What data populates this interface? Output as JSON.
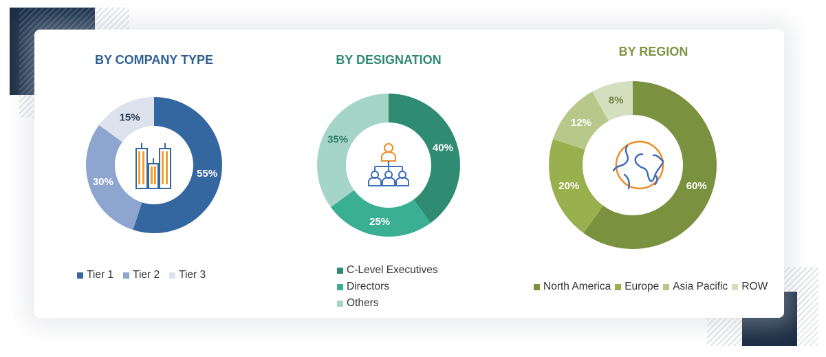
{
  "panels": [
    {
      "title": "BY COMPANY TYPE",
      "title_color": "#2e5f94",
      "icon": "buildings-icon"
    },
    {
      "title": "BY DESIGNATION",
      "title_color": "#2f8a70",
      "icon": "org-hierarchy-icon"
    },
    {
      "title": "BY REGION",
      "title_color": "#7f9443",
      "icon": "globe-icon"
    }
  ],
  "chart_data": [
    {
      "type": "pie",
      "title": "BY COMPANY TYPE",
      "categories": [
        "Tier 1",
        "Tier 2",
        "Tier 3"
      ],
      "values": [
        55,
        30,
        15
      ],
      "labels": [
        "55%",
        "30%",
        "15%"
      ],
      "colors": [
        "#3466a0",
        "#8ea6cf",
        "#dde3ee"
      ],
      "label_colors": [
        "#ffffff",
        "#ffffff",
        "#2b3a4f"
      ],
      "legend_position": "bottom"
    },
    {
      "type": "pie",
      "title": "BY DESIGNATION",
      "categories": [
        "C-Level Executives",
        "Directors",
        "Others"
      ],
      "values": [
        40,
        25,
        35
      ],
      "labels": [
        "40%",
        "25%",
        "35%"
      ],
      "colors": [
        "#2f8b72",
        "#3baf93",
        "#a5d5c6"
      ],
      "label_colors": [
        "#ffffff",
        "#ffffff",
        "#2f7a62"
      ],
      "legend_position": "bottom"
    },
    {
      "type": "pie",
      "title": "BY REGION",
      "categories": [
        "North America",
        "Europe",
        "Asia Pacific",
        "ROW"
      ],
      "values": [
        60,
        20,
        12,
        8
      ],
      "labels": [
        "60%",
        "20%",
        "12%",
        "8%"
      ],
      "colors": [
        "#7a9140",
        "#99b04e",
        "#b7c98a",
        "#d4dfc0"
      ],
      "label_colors": [
        "#ffffff",
        "#ffffff",
        "#ffffff",
        "#6d8240"
      ],
      "legend_position": "bottom"
    }
  ]
}
